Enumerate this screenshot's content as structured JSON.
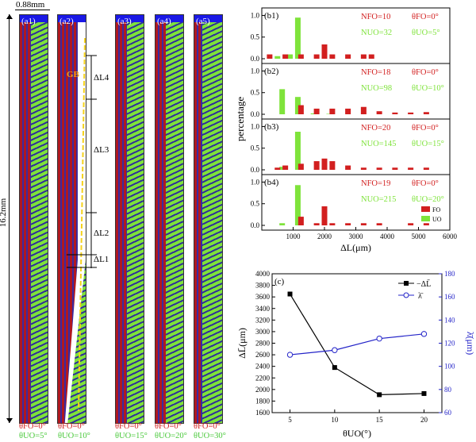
{
  "a_panels": {
    "panels": [
      {
        "label": "(a1)",
        "fo": "θFO=0°",
        "uo": "θUO=5°"
      },
      {
        "label": "(a2)",
        "fo": "θFO=0°",
        "uo": "θUO=10°"
      },
      {
        "label": "(a3)",
        "fo": "θFO=0°",
        "uo": "θUO=15°"
      },
      {
        "label": "(a4)",
        "fo": "θFO=0°",
        "uo": "θUO=20°"
      },
      {
        "label": "(a5)",
        "fo": "θFO=0°",
        "uo": "θUO=30°"
      }
    ],
    "width_label": "0.88mm",
    "height_label": "16.2mm",
    "gb_label": "GB",
    "dl_labels": [
      "ΔL4",
      "ΔL3",
      "ΔL2",
      "ΔL1"
    ]
  },
  "b_panels": {
    "ylabel": "percentage",
    "xlabel": "ΔL(μm)",
    "xticks": [
      "1000",
      "2000",
      "3000",
      "4000",
      "5000",
      "6000"
    ],
    "yticks": [
      "0.0",
      "0.5",
      "1.0"
    ],
    "legend": {
      "fo": "FO",
      "uo": "UO"
    },
    "colors": {
      "fo": "#d21f1f",
      "uo": "#7fe33b"
    }
  },
  "chart_data": [
    {
      "type": "bar",
      "label": "(b1)",
      "nfo": "NFO=10",
      "nuo": "NUO=32",
      "tfo": "θFO=0°",
      "tuo": "θUO=5°",
      "fo": [
        [
          250,
          0.1
        ],
        [
          750,
          0.1
        ],
        [
          1250,
          0.1
        ],
        [
          1750,
          0.1
        ],
        [
          2000,
          0.33
        ],
        [
          2250,
          0.1
        ],
        [
          2750,
          0.1
        ],
        [
          3250,
          0.1
        ],
        [
          3500,
          0.1
        ]
      ],
      "uo": [
        [
          500,
          0.06
        ],
        [
          900,
          0.1
        ],
        [
          1150,
          0.95
        ]
      ]
    },
    {
      "type": "bar",
      "label": "(b2)",
      "nfo": "NFO=18",
      "nuo": "NUO=98",
      "tfo": "θFO=0°",
      "tuo": "θUO=10°",
      "fo": [
        [
          1250,
          0.21
        ],
        [
          1750,
          0.13
        ],
        [
          2250,
          0.13
        ],
        [
          2750,
          0.13
        ],
        [
          3250,
          0.17
        ],
        [
          3750,
          0.07
        ],
        [
          4250,
          0.04
        ],
        [
          4750,
          0.04
        ],
        [
          5250,
          0.05
        ]
      ],
      "uo": [
        [
          650,
          0.58
        ],
        [
          1150,
          0.4
        ],
        [
          1650,
          0.02
        ],
        [
          2150,
          0.01
        ]
      ]
    },
    {
      "type": "bar",
      "label": "(b3)",
      "nfo": "NFO=20",
      "nuo": "NUO=145",
      "tfo": "θFO=0°",
      "tuo": "θUO=15°",
      "fo": [
        [
          500,
          0.05
        ],
        [
          750,
          0.1
        ],
        [
          1250,
          0.14
        ],
        [
          1750,
          0.2
        ],
        [
          2000,
          0.26
        ],
        [
          2250,
          0.2
        ],
        [
          2750,
          0.1
        ],
        [
          3250,
          0.05
        ],
        [
          3750,
          0.05
        ],
        [
          4250,
          0.05
        ],
        [
          4750,
          0.05
        ],
        [
          5250,
          0.05
        ]
      ],
      "uo": [
        [
          650,
          0.07
        ],
        [
          1150,
          0.88
        ]
      ]
    },
    {
      "type": "bar",
      "label": "(b4)",
      "nfo": "NFO=19",
      "nuo": "NUO=215",
      "tfo": "θFO=0°",
      "tuo": "θUO=20°",
      "fo": [
        [
          1250,
          0.2
        ],
        [
          1750,
          0.05
        ],
        [
          2000,
          0.44
        ],
        [
          2250,
          0.05
        ],
        [
          2750,
          0.05
        ],
        [
          3250,
          0.05
        ],
        [
          3750,
          0.05
        ],
        [
          4750,
          0.05
        ],
        [
          5250,
          0.05
        ]
      ],
      "uo": [
        [
          650,
          0.05
        ],
        [
          1150,
          0.93
        ]
      ]
    },
    {
      "type": "line",
      "label": "(c)",
      "x": [
        5,
        10,
        15,
        20
      ],
      "xlabel": "θUO(°)",
      "xticks": [
        "5",
        "10",
        "15",
        "20"
      ],
      "ylabel_left": "ΔL̄(μm)",
      "ylabel_right": "λ̄(μm)",
      "yticks_left": [
        "1600",
        "1800",
        "2000",
        "2200",
        "2400",
        "2600",
        "2800",
        "3000",
        "3200",
        "3400",
        "3600",
        "3800",
        "4000"
      ],
      "yticks_right": [
        "60",
        "80",
        "100",
        "120",
        "140",
        "160",
        "180"
      ],
      "ylim_left": [
        1600,
        4000
      ],
      "ylim_right": [
        60,
        180
      ],
      "series": [
        {
          "name": "ΔL̄",
          "axis": "left",
          "marker": "filled-square",
          "color": "#000000",
          "values": [
            3650,
            2380,
            1910,
            1930
          ]
        },
        {
          "name": "λ̄",
          "axis": "right",
          "marker": "open-circle",
          "color": "#2323c8",
          "values": [
            110,
            114,
            124,
            128
          ]
        }
      ]
    }
  ]
}
